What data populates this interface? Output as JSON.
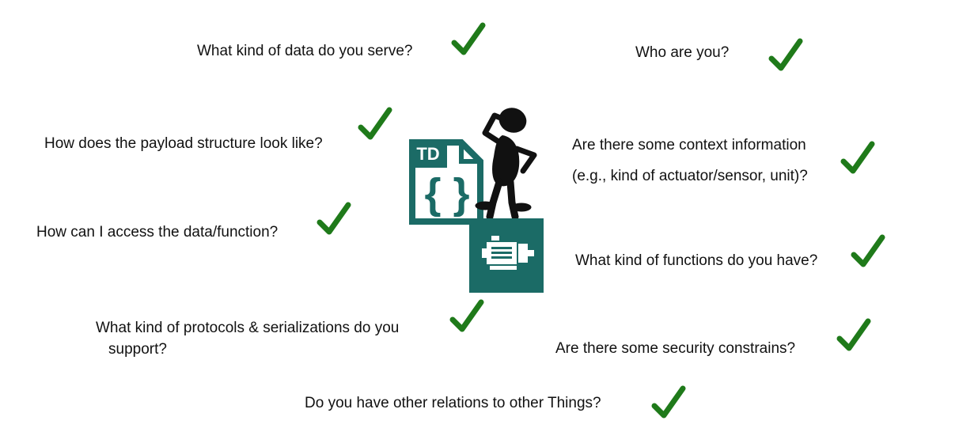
{
  "questions": {
    "data_kind": "What kind of data do you serve?",
    "who": "Who are you?",
    "payload": "How does the payload structure look like?",
    "context_line1": "Are there some context information",
    "context_line2": "(e.g., kind of actuator/sensor, unit)?",
    "access": "How can I access the data/function?",
    "functions": "What kind of functions do you have?",
    "protocols_line1": "What kind of protocols & serializations do you",
    "protocols_line2": "support?",
    "security": "Are there some security constrains?",
    "relations": "Do you have other relations to other Things?"
  },
  "td_icon": {
    "label": "TD",
    "braces": "{ }"
  },
  "colors": {
    "check": "#1f7a1a",
    "teal": "#1b6b66",
    "figure": "#111111"
  },
  "icons": [
    "check-icon",
    "td-document-icon",
    "thinking-person-figure",
    "motor-icon"
  ]
}
